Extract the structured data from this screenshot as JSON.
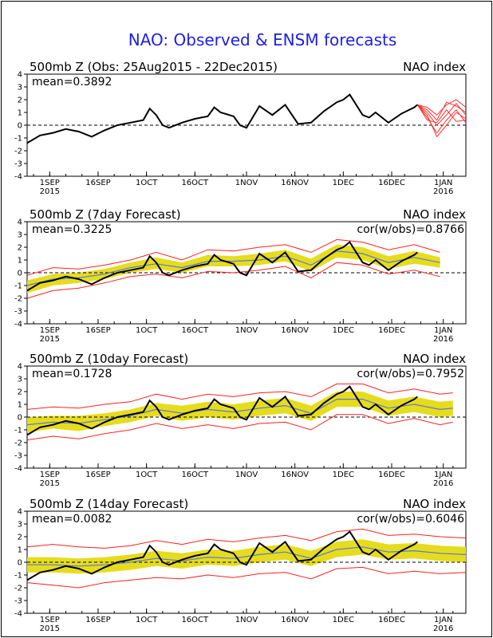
{
  "main_title": "NAO: Observed & ENSM forecasts",
  "colors": {
    "title": "#1e1ee6",
    "observed": "#000000",
    "forecast_recent": "#ff3030",
    "spread_fill": "#e6dc1e",
    "spread_bound": "#ff2020",
    "ens_mean": "#5a7ad6",
    "zero_line": "#000000"
  },
  "x_axis": {
    "ticks": [
      {
        "label": "1SEP",
        "sub": "2015"
      },
      {
        "label": "16SEP",
        "sub": ""
      },
      {
        "label": "1OCT",
        "sub": ""
      },
      {
        "label": "16OCT",
        "sub": ""
      },
      {
        "label": "1NOV",
        "sub": ""
      },
      {
        "label": "16NOV",
        "sub": ""
      },
      {
        "label": "1DEC",
        "sub": ""
      },
      {
        "label": "16DEC",
        "sub": ""
      },
      {
        "label": "1JAN",
        "sub": "2016"
      }
    ],
    "tick_day_offsets": [
      7,
      22,
      37,
      52,
      68,
      83,
      98,
      113,
      129
    ],
    "x_range_days": [
      0,
      136
    ]
  },
  "y_axis": {
    "ticks": [
      "4",
      "3",
      "2",
      "1",
      "0",
      "-1",
      "-2",
      "-3",
      "-4"
    ],
    "ylim": [
      -4,
      4
    ]
  },
  "chart_data": [
    {
      "type": "line",
      "title": "500mb Z (Obs: 25Aug2015 - 22Dec2015)",
      "right_label": "NAO index",
      "mean_label": "mean=0.3892",
      "cor_label": "",
      "series": [
        {
          "name": "observed",
          "x": [
            0,
            4,
            8,
            12,
            16,
            20,
            24,
            28,
            32,
            36,
            38,
            40,
            42,
            44,
            48,
            52,
            56,
            58,
            60,
            64,
            66,
            68,
            72,
            76,
            80,
            84,
            88,
            92,
            96,
            98,
            100,
            104,
            106,
            108,
            112,
            116,
            120,
            121
          ],
          "values": [
            -1.4,
            -0.8,
            -0.6,
            -0.3,
            -0.5,
            -0.9,
            -0.4,
            0.0,
            0.2,
            0.4,
            1.3,
            0.8,
            0.0,
            -0.2,
            0.2,
            0.5,
            0.7,
            1.4,
            1.0,
            0.7,
            0.0,
            -0.2,
            1.5,
            0.8,
            1.6,
            0.1,
            0.2,
            1.1,
            1.8,
            2.0,
            2.4,
            0.8,
            0.6,
            1.0,
            0.2,
            0.9,
            1.4,
            1.6
          ]
        },
        {
          "name": "forecast_members",
          "x": [
            121,
            124,
            127,
            130,
            133,
            136
          ],
          "members": [
            [
              1.6,
              1.0,
              0.0,
              0.8,
              1.7,
              0.8
            ],
            [
              1.6,
              0.6,
              -0.6,
              0.4,
              1.2,
              0.2
            ],
            [
              1.6,
              1.4,
              0.8,
              1.6,
              2.0,
              1.4
            ],
            [
              1.6,
              0.8,
              -0.9,
              0.0,
              1.0,
              0.5
            ],
            [
              1.6,
              1.2,
              0.4,
              1.8,
              1.5,
              1.0
            ],
            [
              1.6,
              0.4,
              0.2,
              1.2,
              0.3,
              0.4
            ]
          ]
        }
      ]
    },
    {
      "type": "line",
      "title": "500mb Z (7day Forecast)",
      "right_label": "NAO index",
      "mean_label": "mean=0.3225",
      "cor_label": "cor(w/obs)=0.8766",
      "series": [
        {
          "name": "observed",
          "x": [
            0,
            4,
            8,
            12,
            16,
            20,
            24,
            28,
            32,
            36,
            38,
            40,
            42,
            44,
            48,
            52,
            56,
            58,
            60,
            64,
            66,
            68,
            72,
            76,
            80,
            84,
            88,
            92,
            96,
            98,
            100,
            104,
            106,
            108,
            112,
            116,
            120,
            121
          ],
          "values": [
            -1.4,
            -0.8,
            -0.6,
            -0.3,
            -0.5,
            -0.9,
            -0.4,
            0.0,
            0.2,
            0.4,
            1.3,
            0.8,
            0.0,
            -0.2,
            0.2,
            0.5,
            0.7,
            1.4,
            1.0,
            0.7,
            0.0,
            -0.2,
            1.5,
            0.8,
            1.6,
            0.1,
            0.2,
            1.1,
            1.8,
            2.0,
            2.4,
            0.8,
            0.6,
            1.0,
            0.2,
            0.9,
            1.4,
            1.6
          ]
        },
        {
          "name": "ensemble_mean",
          "x": [
            0,
            8,
            16,
            24,
            32,
            40,
            48,
            56,
            64,
            72,
            80,
            88,
            96,
            104,
            112,
            120,
            128
          ],
          "values": [
            -1.0,
            -0.5,
            -0.4,
            -0.1,
            0.4,
            0.7,
            0.4,
            0.9,
            0.9,
            1.0,
            1.3,
            0.6,
            1.7,
            1.5,
            0.8,
            1.2,
            0.8
          ]
        },
        {
          "name": "spread_upper",
          "x": [
            0,
            8,
            16,
            24,
            32,
            40,
            48,
            56,
            64,
            72,
            80,
            88,
            96,
            104,
            112,
            120,
            128
          ],
          "values": [
            -0.6,
            -0.1,
            0.0,
            0.3,
            0.8,
            1.2,
            0.8,
            1.4,
            1.3,
            1.5,
            1.8,
            1.1,
            2.2,
            2.0,
            1.3,
            1.7,
            1.2
          ]
        },
        {
          "name": "spread_lower",
          "x": [
            0,
            8,
            16,
            24,
            32,
            40,
            48,
            56,
            64,
            72,
            80,
            88,
            96,
            104,
            112,
            120,
            128
          ],
          "values": [
            -1.6,
            -1.0,
            -0.8,
            -0.5,
            0.0,
            0.3,
            0.0,
            0.5,
            0.5,
            0.6,
            0.9,
            0.1,
            1.2,
            1.0,
            0.3,
            0.7,
            0.4
          ]
        },
        {
          "name": "max_bound",
          "x": [
            0,
            8,
            16,
            24,
            32,
            40,
            48,
            56,
            64,
            72,
            80,
            88,
            96,
            104,
            112,
            120,
            128
          ],
          "values": [
            -0.2,
            0.4,
            0.3,
            0.6,
            1.0,
            1.6,
            1.0,
            1.8,
            1.7,
            2.0,
            2.2,
            1.6,
            2.6,
            2.4,
            1.8,
            2.2,
            1.6
          ]
        },
        {
          "name": "min_bound",
          "x": [
            0,
            8,
            16,
            24,
            32,
            40,
            48,
            56,
            64,
            72,
            80,
            88,
            96,
            104,
            112,
            120,
            128
          ],
          "values": [
            -2.0,
            -1.4,
            -1.2,
            -0.8,
            -0.3,
            -0.1,
            -0.4,
            0.1,
            0.0,
            0.2,
            0.5,
            -0.4,
            0.8,
            0.6,
            -0.1,
            0.2,
            -0.3
          ]
        }
      ]
    },
    {
      "type": "line",
      "title": "500mb Z (10day Forecast)",
      "right_label": "NAO index",
      "mean_label": "mean=0.1728",
      "cor_label": "cor(w/obs)=0.7952",
      "series": [
        {
          "name": "observed",
          "x": [
            0,
            4,
            8,
            12,
            16,
            20,
            24,
            28,
            32,
            36,
            38,
            40,
            42,
            44,
            48,
            52,
            56,
            58,
            60,
            64,
            66,
            68,
            72,
            76,
            80,
            84,
            88,
            92,
            96,
            98,
            100,
            104,
            106,
            108,
            112,
            116,
            120,
            121
          ],
          "values": [
            -1.4,
            -0.8,
            -0.6,
            -0.3,
            -0.5,
            -0.9,
            -0.4,
            0.0,
            0.2,
            0.4,
            1.3,
            0.8,
            0.0,
            -0.2,
            0.2,
            0.5,
            0.7,
            1.4,
            1.0,
            0.7,
            0.0,
            -0.2,
            1.5,
            0.8,
            1.6,
            0.1,
            0.2,
            1.1,
            1.8,
            2.0,
            2.4,
            0.8,
            0.6,
            1.0,
            0.2,
            0.9,
            1.4,
            1.6
          ]
        },
        {
          "name": "ensemble_mean",
          "x": [
            0,
            8,
            16,
            24,
            32,
            40,
            48,
            56,
            64,
            72,
            80,
            88,
            96,
            104,
            112,
            120,
            128,
            132
          ],
          "values": [
            -0.6,
            -0.4,
            -0.5,
            -0.2,
            0.1,
            0.6,
            0.3,
            0.6,
            0.4,
            0.7,
            0.9,
            0.3,
            1.4,
            1.4,
            0.7,
            1.0,
            0.6,
            0.7
          ]
        },
        {
          "name": "spread_upper",
          "x": [
            0,
            8,
            16,
            24,
            32,
            40,
            48,
            56,
            64,
            72,
            80,
            88,
            96,
            104,
            112,
            120,
            128,
            132
          ],
          "values": [
            0.0,
            0.1,
            0.1,
            0.3,
            0.6,
            1.1,
            0.9,
            1.2,
            1.0,
            1.3,
            1.5,
            0.9,
            2.0,
            2.0,
            1.3,
            1.6,
            1.2,
            1.3
          ]
        },
        {
          "name": "spread_lower",
          "x": [
            0,
            8,
            16,
            24,
            32,
            40,
            48,
            56,
            64,
            72,
            80,
            88,
            96,
            104,
            112,
            120,
            128,
            132
          ],
          "values": [
            -1.2,
            -0.9,
            -1.1,
            -0.7,
            -0.4,
            0.1,
            -0.3,
            0.0,
            -0.2,
            0.1,
            0.3,
            -0.3,
            0.8,
            0.8,
            0.1,
            0.4,
            0.0,
            0.1
          ]
        },
        {
          "name": "max_bound",
          "x": [
            0,
            8,
            16,
            24,
            32,
            40,
            48,
            56,
            64,
            72,
            80,
            88,
            96,
            104,
            112,
            120,
            128,
            132
          ],
          "values": [
            0.6,
            0.8,
            0.7,
            1.0,
            1.2,
            1.8,
            1.4,
            1.8,
            1.6,
            1.9,
            2.0,
            1.6,
            2.6,
            2.6,
            1.9,
            2.2,
            1.8,
            1.9
          ]
        },
        {
          "name": "min_bound",
          "x": [
            0,
            8,
            16,
            24,
            32,
            40,
            48,
            56,
            64,
            72,
            80,
            88,
            96,
            104,
            112,
            120,
            128,
            132
          ],
          "values": [
            -1.8,
            -1.5,
            -1.7,
            -1.3,
            -1.0,
            -0.5,
            -0.9,
            -0.6,
            -0.9,
            -0.5,
            -0.4,
            -1.0,
            0.2,
            0.2,
            -0.5,
            -0.1,
            -0.6,
            -0.4
          ]
        }
      ]
    },
    {
      "type": "line",
      "title": "500mb Z (14day Forecast)",
      "right_label": "NAO index",
      "mean_label": "mean=0.0082",
      "cor_label": "cor(w/obs)=0.6046",
      "series": [
        {
          "name": "observed",
          "x": [
            0,
            4,
            8,
            12,
            16,
            20,
            24,
            28,
            32,
            36,
            38,
            40,
            42,
            44,
            48,
            52,
            56,
            58,
            60,
            64,
            66,
            68,
            72,
            76,
            80,
            84,
            88,
            92,
            96,
            98,
            100,
            104,
            106,
            108,
            112,
            116,
            120,
            121
          ],
          "values": [
            -1.4,
            -0.8,
            -0.6,
            -0.3,
            -0.5,
            -0.9,
            -0.4,
            0.0,
            0.2,
            0.4,
            1.3,
            0.8,
            0.0,
            -0.2,
            0.2,
            0.5,
            0.7,
            1.4,
            1.0,
            0.7,
            0.0,
            -0.2,
            1.5,
            0.8,
            1.6,
            0.1,
            0.2,
            1.1,
            1.8,
            2.0,
            2.4,
            0.8,
            0.6,
            1.0,
            0.2,
            0.9,
            1.4,
            1.6
          ]
        },
        {
          "name": "ensemble_mean",
          "x": [
            0,
            8,
            16,
            24,
            32,
            40,
            48,
            56,
            64,
            72,
            80,
            88,
            96,
            104,
            112,
            120,
            128,
            136
          ],
          "values": [
            -0.2,
            -0.2,
            -0.3,
            -0.2,
            0.0,
            0.3,
            0.1,
            0.4,
            0.3,
            0.6,
            0.8,
            0.3,
            1.0,
            1.2,
            0.8,
            0.9,
            0.7,
            0.6
          ]
        },
        {
          "name": "spread_upper",
          "x": [
            0,
            8,
            16,
            24,
            32,
            40,
            48,
            56,
            64,
            72,
            80,
            88,
            96,
            104,
            112,
            120,
            128,
            136
          ],
          "values": [
            0.4,
            0.4,
            0.3,
            0.4,
            0.6,
            0.9,
            0.7,
            1.0,
            0.9,
            1.2,
            1.4,
            0.9,
            1.6,
            1.8,
            1.4,
            1.5,
            1.3,
            1.2
          ]
        },
        {
          "name": "spread_lower",
          "x": [
            0,
            8,
            16,
            24,
            32,
            40,
            48,
            56,
            64,
            72,
            80,
            88,
            96,
            104,
            112,
            120,
            128,
            136
          ],
          "values": [
            -0.8,
            -0.8,
            -0.9,
            -0.8,
            -0.6,
            -0.3,
            -0.5,
            -0.2,
            -0.3,
            0.0,
            0.2,
            -0.3,
            0.4,
            0.6,
            0.2,
            0.3,
            0.1,
            0.0
          ]
        },
        {
          "name": "max_bound",
          "x": [
            0,
            8,
            16,
            24,
            32,
            40,
            48,
            56,
            64,
            72,
            80,
            88,
            96,
            104,
            112,
            120,
            128,
            136
          ],
          "values": [
            1.2,
            1.4,
            1.2,
            1.1,
            1.3,
            1.7,
            1.4,
            1.8,
            1.6,
            1.9,
            2.1,
            1.7,
            2.4,
            2.6,
            2.1,
            2.2,
            2.0,
            1.9
          ]
        },
        {
          "name": "min_bound",
          "x": [
            0,
            8,
            16,
            24,
            32,
            40,
            48,
            56,
            64,
            72,
            80,
            88,
            96,
            104,
            112,
            120,
            128,
            136
          ],
          "values": [
            -1.6,
            -1.8,
            -2.0,
            -1.6,
            -1.4,
            -1.2,
            -1.3,
            -1.0,
            -1.2,
            -0.9,
            -0.8,
            -1.3,
            -0.5,
            -0.4,
            -0.9,
            -0.7,
            -0.9,
            -0.8
          ]
        }
      ]
    }
  ]
}
